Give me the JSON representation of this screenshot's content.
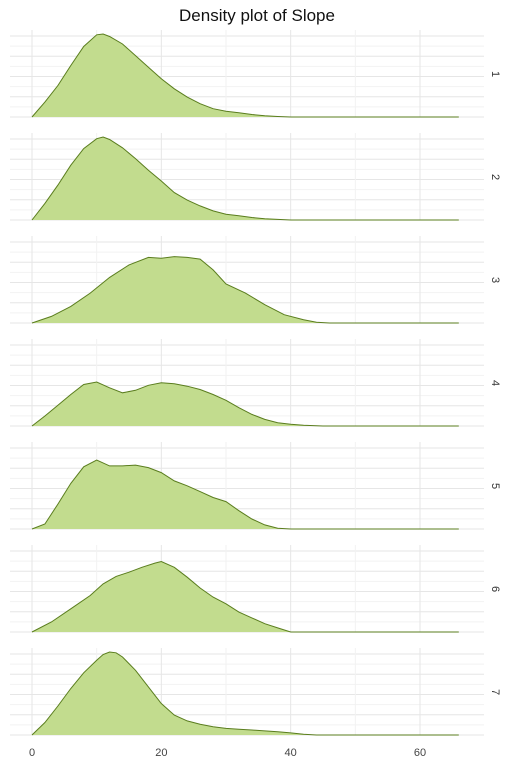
{
  "chart_data": {
    "type": "area",
    "title": "Density plot of Slope",
    "xlabel": "",
    "ylabel": "",
    "xlim": [
      0,
      66
    ],
    "x_ticks": [
      0,
      20,
      40,
      60
    ],
    "grid": true,
    "fill_color": "#c2dc8e",
    "line_color": "#5a7d1e",
    "panels": [
      {
        "label": "1",
        "points": [
          [
            0,
            0.0
          ],
          [
            2,
            0.18
          ],
          [
            4,
            0.38
          ],
          [
            6,
            0.62
          ],
          [
            8,
            0.85
          ],
          [
            10,
            0.99
          ],
          [
            11,
            1.0
          ],
          [
            12,
            0.97
          ],
          [
            14,
            0.88
          ],
          [
            16,
            0.74
          ],
          [
            18,
            0.6
          ],
          [
            20,
            0.46
          ],
          [
            22,
            0.34
          ],
          [
            24,
            0.24
          ],
          [
            26,
            0.16
          ],
          [
            28,
            0.1
          ],
          [
            30,
            0.07
          ],
          [
            32,
            0.05
          ],
          [
            34,
            0.03
          ],
          [
            36,
            0.015
          ],
          [
            38,
            0.006
          ],
          [
            40,
            0.0
          ],
          [
            66,
            0.0
          ]
        ]
      },
      {
        "label": "2",
        "points": [
          [
            0,
            0.0
          ],
          [
            2,
            0.2
          ],
          [
            4,
            0.42
          ],
          [
            6,
            0.66
          ],
          [
            8,
            0.86
          ],
          [
            10,
            0.98
          ],
          [
            11,
            1.0
          ],
          [
            12,
            0.97
          ],
          [
            14,
            0.87
          ],
          [
            16,
            0.74
          ],
          [
            18,
            0.6
          ],
          [
            20,
            0.47
          ],
          [
            22,
            0.33
          ],
          [
            24,
            0.24
          ],
          [
            26,
            0.17
          ],
          [
            28,
            0.11
          ],
          [
            30,
            0.07
          ],
          [
            32,
            0.05
          ],
          [
            34,
            0.03
          ],
          [
            36,
            0.015
          ],
          [
            38,
            0.007
          ],
          [
            40,
            0.0
          ],
          [
            66,
            0.0
          ]
        ]
      },
      {
        "label": "3",
        "points": [
          [
            0,
            0.0
          ],
          [
            3,
            0.08
          ],
          [
            6,
            0.2
          ],
          [
            9,
            0.36
          ],
          [
            12,
            0.55
          ],
          [
            15,
            0.7
          ],
          [
            18,
            0.79
          ],
          [
            20,
            0.78
          ],
          [
            22,
            0.8
          ],
          [
            24,
            0.79
          ],
          [
            26,
            0.77
          ],
          [
            28,
            0.64
          ],
          [
            30,
            0.47
          ],
          [
            33,
            0.36
          ],
          [
            36,
            0.22
          ],
          [
            39,
            0.1
          ],
          [
            42,
            0.04
          ],
          [
            44,
            0.01
          ],
          [
            46,
            0.0
          ],
          [
            66,
            0.0
          ]
        ]
      },
      {
        "label": "4",
        "points": [
          [
            0,
            0.0
          ],
          [
            2,
            0.12
          ],
          [
            4,
            0.25
          ],
          [
            6,
            0.38
          ],
          [
            8,
            0.5
          ],
          [
            10,
            0.53
          ],
          [
            12,
            0.46
          ],
          [
            14,
            0.4
          ],
          [
            16,
            0.43
          ],
          [
            18,
            0.49
          ],
          [
            20,
            0.52
          ],
          [
            22,
            0.51
          ],
          [
            24,
            0.48
          ],
          [
            26,
            0.44
          ],
          [
            28,
            0.38
          ],
          [
            30,
            0.31
          ],
          [
            32,
            0.22
          ],
          [
            34,
            0.14
          ],
          [
            36,
            0.08
          ],
          [
            38,
            0.04
          ],
          [
            40,
            0.02
          ],
          [
            42,
            0.01
          ],
          [
            45,
            0.0
          ],
          [
            66,
            0.0
          ]
        ]
      },
      {
        "label": "5",
        "points": [
          [
            0,
            0.0
          ],
          [
            2,
            0.06
          ],
          [
            4,
            0.3
          ],
          [
            6,
            0.55
          ],
          [
            8,
            0.75
          ],
          [
            10,
            0.83
          ],
          [
            12,
            0.76
          ],
          [
            14,
            0.76
          ],
          [
            16,
            0.77
          ],
          [
            18,
            0.74
          ],
          [
            20,
            0.68
          ],
          [
            22,
            0.58
          ],
          [
            24,
            0.52
          ],
          [
            26,
            0.45
          ],
          [
            28,
            0.38
          ],
          [
            30,
            0.33
          ],
          [
            32,
            0.22
          ],
          [
            34,
            0.12
          ],
          [
            36,
            0.05
          ],
          [
            38,
            0.01
          ],
          [
            40,
            0.0
          ],
          [
            66,
            0.0
          ]
        ]
      },
      {
        "label": "6",
        "points": [
          [
            0,
            0.0
          ],
          [
            3,
            0.12
          ],
          [
            6,
            0.28
          ],
          [
            9,
            0.44
          ],
          [
            11,
            0.58
          ],
          [
            13,
            0.67
          ],
          [
            15,
            0.72
          ],
          [
            17,
            0.78
          ],
          [
            19,
            0.83
          ],
          [
            20,
            0.85
          ],
          [
            22,
            0.78
          ],
          [
            24,
            0.66
          ],
          [
            26,
            0.53
          ],
          [
            28,
            0.42
          ],
          [
            30,
            0.34
          ],
          [
            32,
            0.24
          ],
          [
            34,
            0.17
          ],
          [
            36,
            0.1
          ],
          [
            38,
            0.05
          ],
          [
            40,
            0.0
          ],
          [
            66,
            0.0
          ]
        ]
      },
      {
        "label": "7",
        "points": [
          [
            0,
            0.0
          ],
          [
            2,
            0.15
          ],
          [
            4,
            0.35
          ],
          [
            6,
            0.56
          ],
          [
            8,
            0.75
          ],
          [
            10,
            0.9
          ],
          [
            11,
            0.97
          ],
          [
            12,
            1.0
          ],
          [
            13,
            0.99
          ],
          [
            14,
            0.94
          ],
          [
            16,
            0.78
          ],
          [
            18,
            0.58
          ],
          [
            20,
            0.38
          ],
          [
            22,
            0.24
          ],
          [
            24,
            0.17
          ],
          [
            26,
            0.13
          ],
          [
            28,
            0.1
          ],
          [
            30,
            0.08
          ],
          [
            32,
            0.07
          ],
          [
            34,
            0.06
          ],
          [
            36,
            0.05
          ],
          [
            38,
            0.04
          ],
          [
            40,
            0.025
          ],
          [
            42,
            0.01
          ],
          [
            44,
            0.0
          ],
          [
            66,
            0.0
          ]
        ]
      }
    ]
  }
}
